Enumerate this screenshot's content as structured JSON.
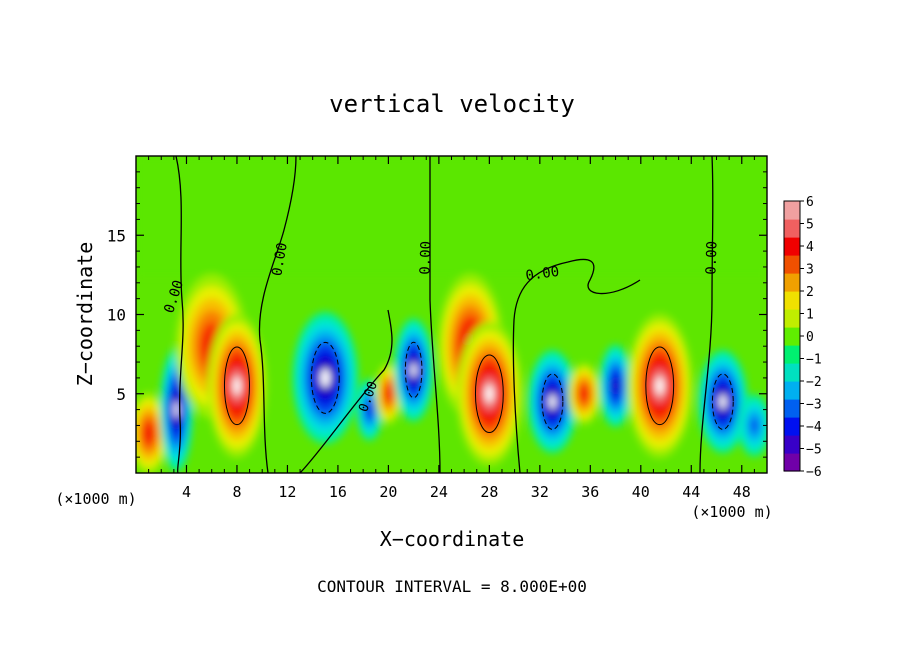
{
  "chart_data": {
    "type": "heatmap",
    "title": "vertical velocity",
    "xlabel": "X−coordinate",
    "ylabel": "Z−coordinate",
    "x_units_left": "(×1000 m)",
    "x_units_right": "(×1000 m)",
    "xlim": [
      0,
      50
    ],
    "ylim": [
      0,
      20
    ],
    "x_ticks": [
      4,
      8,
      12,
      16,
      20,
      24,
      28,
      32,
      36,
      40,
      44,
      48
    ],
    "y_ticks": [
      5,
      10,
      15
    ],
    "colorbar_range": [
      -6,
      6
    ],
    "colorbar_ticks": [
      "6",
      "5",
      "4",
      "3",
      "2",
      "1",
      "0",
      "−1",
      "−2",
      "−3",
      "−4",
      "−5",
      "−6"
    ],
    "contour_labels": [
      "0.00",
      "0.00",
      "0.00",
      "0.00",
      "0.00",
      "0.00"
    ],
    "footer": "CONTOUR INTERVAL = 8.000E+00",
    "colors": {
      "background": "#5ee600",
      "max": "#ffffff",
      "min": "#ffffff"
    },
    "cells": [
      {
        "x": 1.0,
        "z": 2.5,
        "v": 4.5,
        "sx": 1.2,
        "sz": 2.0
      },
      {
        "x": 3.2,
        "z": 4.0,
        "v": -5.5,
        "sx": 1.0,
        "sz": 3.0
      },
      {
        "x": 6.0,
        "z": 8.0,
        "v": 5.0,
        "sx": 2.2,
        "sz": 3.5
      },
      {
        "x": 8.0,
        "z": 5.5,
        "v": 8.0,
        "sx": 1.8,
        "sz": 3.5
      },
      {
        "x": 15.0,
        "z": 6.0,
        "v": -8.0,
        "sx": 2.0,
        "sz": 3.2
      },
      {
        "x": 18.5,
        "z": 4.0,
        "v": -3.5,
        "sx": 0.8,
        "sz": 1.5
      },
      {
        "x": 20.0,
        "z": 5.0,
        "v": 5.0,
        "sx": 0.8,
        "sz": 1.5
      },
      {
        "x": 22.0,
        "z": 6.5,
        "v": -7.5,
        "sx": 1.2,
        "sz": 2.5
      },
      {
        "x": 26.5,
        "z": 8.0,
        "v": 6.0,
        "sx": 2.0,
        "sz": 3.5
      },
      {
        "x": 28.0,
        "z": 5.0,
        "v": 8.0,
        "sx": 2.0,
        "sz": 3.5
      },
      {
        "x": 33.0,
        "z": 4.5,
        "v": -7.0,
        "sx": 1.5,
        "sz": 2.5
      },
      {
        "x": 35.5,
        "z": 5.0,
        "v": 4.5,
        "sx": 1.0,
        "sz": 1.5
      },
      {
        "x": 38.0,
        "z": 5.5,
        "v": -5.0,
        "sx": 1.0,
        "sz": 2.0
      },
      {
        "x": 41.5,
        "z": 5.5,
        "v": 8.0,
        "sx": 2.0,
        "sz": 3.5
      },
      {
        "x": 46.5,
        "z": 4.5,
        "v": -7.0,
        "sx": 1.5,
        "sz": 2.5
      },
      {
        "x": 49.0,
        "z": 3.0,
        "v": -3.0,
        "sx": 1.0,
        "sz": 1.5
      }
    ]
  }
}
